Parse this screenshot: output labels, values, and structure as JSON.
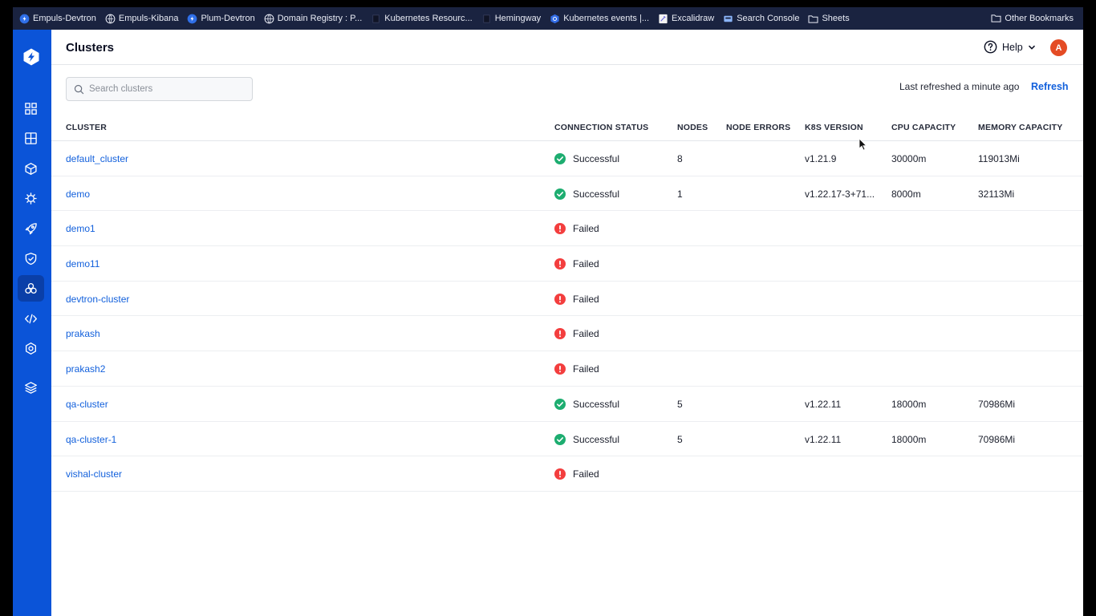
{
  "bookmarks": {
    "items": [
      {
        "label": "Empuls-Devtron",
        "icon": "devtron-icon"
      },
      {
        "label": "Empuls-Kibana",
        "icon": "kibana-icon"
      },
      {
        "label": "Plum-Devtron",
        "icon": "devtron-icon"
      },
      {
        "label": "Domain Registry : P...",
        "icon": "globe-icon"
      },
      {
        "label": "Kubernetes Resourc...",
        "icon": "page-icon"
      },
      {
        "label": "Hemingway",
        "icon": "page-icon"
      },
      {
        "label": "Kubernetes events |...",
        "icon": "kubernetes-icon"
      },
      {
        "label": "Excalidraw",
        "icon": "excalidraw-icon"
      },
      {
        "label": "Search Console",
        "icon": "search-console-icon"
      },
      {
        "label": "Sheets",
        "icon": "folder-icon"
      }
    ],
    "other": "Other Bookmarks"
  },
  "header": {
    "title": "Clusters",
    "help_label": "Help",
    "avatar_initial": "A"
  },
  "toolbar": {
    "search_placeholder": "Search clusters",
    "last_refreshed": "Last refreshed a minute ago",
    "refresh_label": "Refresh"
  },
  "table": {
    "columns": [
      "CLUSTER",
      "CONNECTION STATUS",
      "NODES",
      "NODE ERRORS",
      "K8S VERSION",
      "CPU CAPACITY",
      "MEMORY CAPACITY"
    ],
    "rows": [
      {
        "name": "default_cluster",
        "status": "Successful",
        "nodes": "8",
        "node_errors": "",
        "k8s_version": "v1.21.9",
        "cpu": "30000m",
        "memory": "119013Mi"
      },
      {
        "name": "demo",
        "status": "Successful",
        "nodes": "1",
        "node_errors": "",
        "k8s_version": "v1.22.17-3+71...",
        "cpu": "8000m",
        "memory": "32113Mi"
      },
      {
        "name": "demo1",
        "status": "Failed",
        "nodes": "",
        "node_errors": "",
        "k8s_version": "",
        "cpu": "",
        "memory": ""
      },
      {
        "name": "demo11",
        "status": "Failed",
        "nodes": "",
        "node_errors": "",
        "k8s_version": "",
        "cpu": "",
        "memory": ""
      },
      {
        "name": "devtron-cluster",
        "status": "Failed",
        "nodes": "",
        "node_errors": "",
        "k8s_version": "",
        "cpu": "",
        "memory": ""
      },
      {
        "name": "prakash",
        "status": "Failed",
        "nodes": "",
        "node_errors": "",
        "k8s_version": "",
        "cpu": "",
        "memory": ""
      },
      {
        "name": "prakash2",
        "status": "Failed",
        "nodes": "",
        "node_errors": "",
        "k8s_version": "",
        "cpu": "",
        "memory": ""
      },
      {
        "name": "qa-cluster",
        "status": "Successful",
        "nodes": "5",
        "node_errors": "",
        "k8s_version": "v1.22.11",
        "cpu": "18000m",
        "memory": "70986Mi"
      },
      {
        "name": "qa-cluster-1",
        "status": "Successful",
        "nodes": "5",
        "node_errors": "",
        "k8s_version": "v1.22.11",
        "cpu": "18000m",
        "memory": "70986Mi"
      },
      {
        "name": "vishal-cluster",
        "status": "Failed",
        "nodes": "",
        "node_errors": "",
        "k8s_version": "",
        "cpu": "",
        "memory": ""
      }
    ]
  },
  "colors": {
    "sidebar": "#0b54d8",
    "link": "#1260dc",
    "success": "#1dad70",
    "failed": "#f33e3e",
    "avatar": "#e44b24"
  }
}
